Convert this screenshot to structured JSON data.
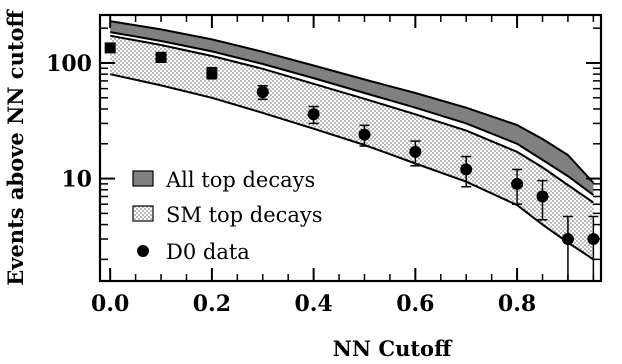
{
  "chart_data": {
    "type": "line",
    "title": "",
    "xlabel": "NN Cutoff",
    "ylabel": "Events above NN cutoff",
    "xlim": [
      -0.02,
      0.965
    ],
    "ylim": [
      1.3,
      260
    ],
    "yscale": "log",
    "x_ticks": [
      "0.0",
      "0.2",
      "0.4",
      "0.6",
      "0.8"
    ],
    "x_tick_values": [
      0.0,
      0.2,
      0.4,
      0.6,
      0.8
    ],
    "y_ticks": [
      "10",
      "100"
    ],
    "y_tick_values": [
      10,
      100
    ],
    "grid": false,
    "legend_position": "bottom-left",
    "series": [
      {
        "name": "All top decays",
        "kind": "band",
        "fill": "#808080",
        "x": [
          0.0,
          0.1,
          0.2,
          0.3,
          0.4,
          0.5,
          0.6,
          0.7,
          0.8,
          0.85,
          0.9,
          0.95
        ],
        "upper": [
          230,
          195,
          160,
          125,
          95,
          72,
          55,
          41,
          29,
          22,
          16,
          9.2
        ],
        "lower": [
          185,
          155,
          126,
          98,
          74,
          55,
          41,
          30,
          20,
          14.5,
          10.5,
          7.2
        ]
      },
      {
        "name": "SM top decays",
        "kind": "band",
        "fill": "dotted",
        "x": [
          0.0,
          0.1,
          0.2,
          0.3,
          0.4,
          0.5,
          0.6,
          0.7,
          0.8,
          0.85,
          0.9,
          0.95
        ],
        "upper": [
          172,
          143,
          115,
          89,
          66,
          49,
          36,
          26,
          17,
          12.5,
          8.8,
          6.2
        ],
        "lower": [
          80,
          64,
          50,
          37,
          27,
          19.5,
          13.5,
          9.4,
          5.9,
          4.0,
          2.8,
          2.0
        ]
      },
      {
        "name": "D0 data",
        "kind": "points",
        "x": [
          0.0,
          0.1,
          0.2,
          0.3,
          0.4,
          0.5,
          0.6,
          0.7,
          0.8,
          0.85,
          0.9,
          0.95
        ],
        "y": [
          135,
          112,
          82,
          56,
          36,
          24,
          17,
          12,
          9,
          7,
          3,
          3
        ],
        "yerr": [
          11.6,
          10.6,
          9.1,
          7.5,
          6.0,
          4.9,
          4.1,
          3.5,
          3.0,
          2.6,
          1.7,
          1.7
        ]
      }
    ]
  }
}
